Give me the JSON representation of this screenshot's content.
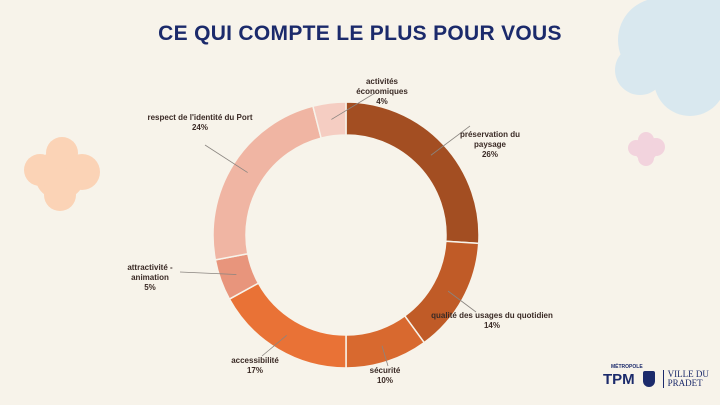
{
  "title": "CE QUI COMPTE LE PLUS POUR VOUS",
  "logos": {
    "metropole": "MÉTROPOLE",
    "tpm": "TPM",
    "ville": [
      "VILLE DU",
      "PRADET"
    ]
  },
  "chart_data": {
    "type": "pie",
    "subtype": "donut",
    "title": "CE QUI COMPTE LE PLUS POUR VOUS",
    "slices": [
      {
        "label": [
          "préservation du",
          "paysage"
        ],
        "value": 26,
        "pct": "26%",
        "color": "#A34E22"
      },
      {
        "label": [
          "qualité des usages du quotidien"
        ],
        "value": 14,
        "pct": "14%",
        "color": "#C05B27"
      },
      {
        "label": [
          "sécurité"
        ],
        "value": 10,
        "pct": "10%",
        "color": "#D8692F"
      },
      {
        "label": [
          "accessibilité"
        ],
        "value": 17,
        "pct": "17%",
        "color": "#E97236"
      },
      {
        "label": [
          "attractivité -",
          "animation"
        ],
        "value": 5,
        "pct": "5%",
        "color": "#E8957C"
      },
      {
        "label": [
          "respect de l'identité du Port"
        ],
        "value": 24,
        "pct": "24%",
        "color": "#F0B5A3"
      },
      {
        "label": [
          "activités",
          "économiques"
        ],
        "value": 4,
        "pct": "4%",
        "color": "#F5CDC2"
      }
    ]
  }
}
